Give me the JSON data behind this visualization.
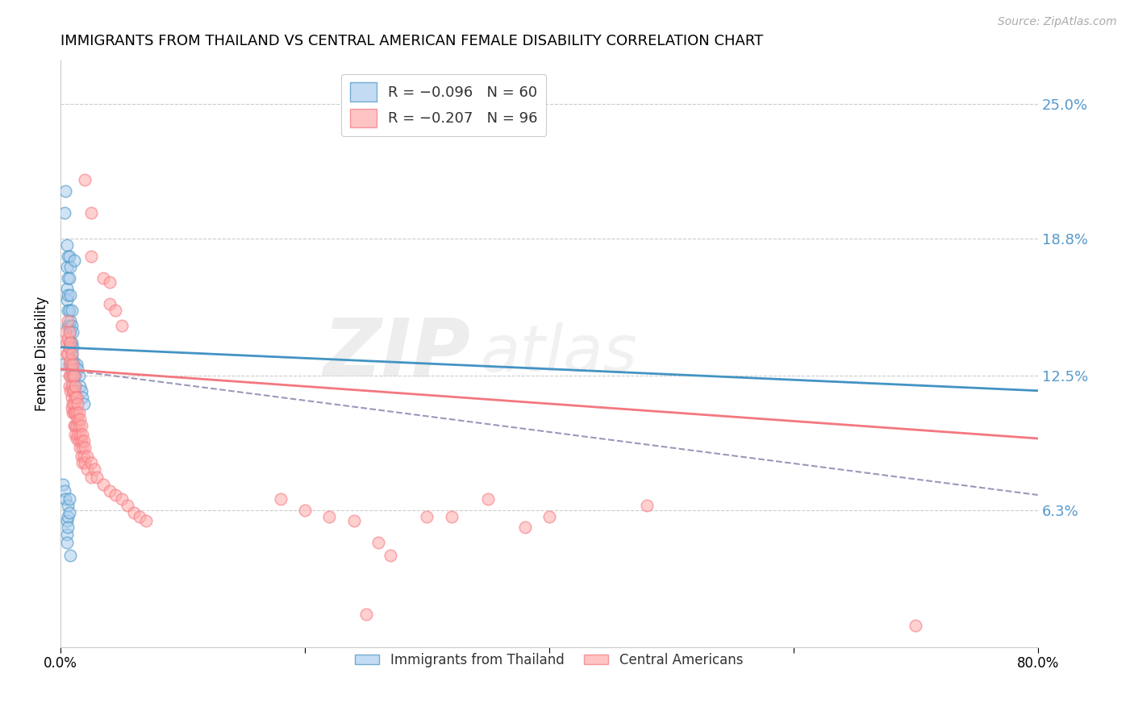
{
  "title": "IMMIGRANTS FROM THAILAND VS CENTRAL AMERICAN FEMALE DISABILITY CORRELATION CHART",
  "source": "Source: ZipAtlas.com",
  "ylabel": "Female Disability",
  "right_yticks": [
    "25.0%",
    "18.8%",
    "12.5%",
    "6.3%"
  ],
  "right_ytick_vals": [
    0.25,
    0.188,
    0.125,
    0.063
  ],
  "watermark": "ZIPatlas",
  "xlim": [
    0.0,
    0.8
  ],
  "ylim": [
    0.0,
    0.27
  ],
  "thailand_scatter": [
    [
      0.002,
      0.13
    ],
    [
      0.003,
      0.2
    ],
    [
      0.004,
      0.21
    ],
    [
      0.005,
      0.185
    ],
    [
      0.005,
      0.175
    ],
    [
      0.005,
      0.165
    ],
    [
      0.005,
      0.16
    ],
    [
      0.006,
      0.18
    ],
    [
      0.006,
      0.17
    ],
    [
      0.006,
      0.162
    ],
    [
      0.006,
      0.155
    ],
    [
      0.006,
      0.148
    ],
    [
      0.007,
      0.18
    ],
    [
      0.007,
      0.17
    ],
    [
      0.007,
      0.155
    ],
    [
      0.007,
      0.148
    ],
    [
      0.007,
      0.14
    ],
    [
      0.007,
      0.138
    ],
    [
      0.008,
      0.175
    ],
    [
      0.008,
      0.162
    ],
    [
      0.008,
      0.15
    ],
    [
      0.008,
      0.145
    ],
    [
      0.008,
      0.14
    ],
    [
      0.008,
      0.13
    ],
    [
      0.009,
      0.155
    ],
    [
      0.009,
      0.148
    ],
    [
      0.009,
      0.14
    ],
    [
      0.009,
      0.135
    ],
    [
      0.009,
      0.13
    ],
    [
      0.009,
      0.125
    ],
    [
      0.01,
      0.145
    ],
    [
      0.01,
      0.138
    ],
    [
      0.01,
      0.132
    ],
    [
      0.01,
      0.128
    ],
    [
      0.01,
      0.125
    ],
    [
      0.01,
      0.12
    ],
    [
      0.011,
      0.178
    ],
    [
      0.011,
      0.13
    ],
    [
      0.011,
      0.125
    ],
    [
      0.012,
      0.125
    ],
    [
      0.012,
      0.12
    ],
    [
      0.013,
      0.13
    ],
    [
      0.014,
      0.128
    ],
    [
      0.015,
      0.125
    ],
    [
      0.016,
      0.12
    ],
    [
      0.017,
      0.118
    ],
    [
      0.018,
      0.115
    ],
    [
      0.019,
      0.112
    ],
    [
      0.002,
      0.075
    ],
    [
      0.003,
      0.072
    ],
    [
      0.004,
      0.068
    ],
    [
      0.005,
      0.058
    ],
    [
      0.005,
      0.052
    ],
    [
      0.005,
      0.048
    ],
    [
      0.006,
      0.065
    ],
    [
      0.006,
      0.06
    ],
    [
      0.006,
      0.055
    ],
    [
      0.007,
      0.068
    ],
    [
      0.007,
      0.062
    ],
    [
      0.008,
      0.042
    ]
  ],
  "central_scatter": [
    [
      0.004,
      0.145
    ],
    [
      0.005,
      0.14
    ],
    [
      0.005,
      0.135
    ],
    [
      0.006,
      0.15
    ],
    [
      0.006,
      0.142
    ],
    [
      0.006,
      0.135
    ],
    [
      0.007,
      0.145
    ],
    [
      0.007,
      0.138
    ],
    [
      0.007,
      0.13
    ],
    [
      0.007,
      0.125
    ],
    [
      0.007,
      0.12
    ],
    [
      0.008,
      0.14
    ],
    [
      0.008,
      0.132
    ],
    [
      0.008,
      0.125
    ],
    [
      0.008,
      0.118
    ],
    [
      0.009,
      0.135
    ],
    [
      0.009,
      0.128
    ],
    [
      0.009,
      0.12
    ],
    [
      0.009,
      0.115
    ],
    [
      0.009,
      0.11
    ],
    [
      0.01,
      0.13
    ],
    [
      0.01,
      0.125
    ],
    [
      0.01,
      0.118
    ],
    [
      0.01,
      0.112
    ],
    [
      0.01,
      0.108
    ],
    [
      0.011,
      0.125
    ],
    [
      0.011,
      0.118
    ],
    [
      0.011,
      0.112
    ],
    [
      0.011,
      0.108
    ],
    [
      0.011,
      0.102
    ],
    [
      0.012,
      0.12
    ],
    [
      0.012,
      0.115
    ],
    [
      0.012,
      0.108
    ],
    [
      0.012,
      0.102
    ],
    [
      0.012,
      0.098
    ],
    [
      0.013,
      0.115
    ],
    [
      0.013,
      0.108
    ],
    [
      0.013,
      0.102
    ],
    [
      0.013,
      0.096
    ],
    [
      0.014,
      0.112
    ],
    [
      0.014,
      0.105
    ],
    [
      0.014,
      0.098
    ],
    [
      0.015,
      0.108
    ],
    [
      0.015,
      0.102
    ],
    [
      0.015,
      0.095
    ],
    [
      0.016,
      0.105
    ],
    [
      0.016,
      0.098
    ],
    [
      0.016,
      0.092
    ],
    [
      0.017,
      0.102
    ],
    [
      0.017,
      0.095
    ],
    [
      0.017,
      0.088
    ],
    [
      0.018,
      0.098
    ],
    [
      0.018,
      0.092
    ],
    [
      0.018,
      0.085
    ],
    [
      0.019,
      0.095
    ],
    [
      0.019,
      0.088
    ],
    [
      0.02,
      0.092
    ],
    [
      0.02,
      0.085
    ],
    [
      0.022,
      0.088
    ],
    [
      0.022,
      0.082
    ],
    [
      0.025,
      0.085
    ],
    [
      0.025,
      0.078
    ],
    [
      0.028,
      0.082
    ],
    [
      0.03,
      0.078
    ],
    [
      0.035,
      0.075
    ],
    [
      0.04,
      0.072
    ],
    [
      0.045,
      0.07
    ],
    [
      0.05,
      0.068
    ],
    [
      0.055,
      0.065
    ],
    [
      0.06,
      0.062
    ],
    [
      0.065,
      0.06
    ],
    [
      0.07,
      0.058
    ],
    [
      0.02,
      0.215
    ],
    [
      0.025,
      0.2
    ],
    [
      0.025,
      0.18
    ],
    [
      0.035,
      0.17
    ],
    [
      0.04,
      0.168
    ],
    [
      0.04,
      0.158
    ],
    [
      0.045,
      0.155
    ],
    [
      0.05,
      0.148
    ],
    [
      0.18,
      0.068
    ],
    [
      0.2,
      0.063
    ],
    [
      0.22,
      0.06
    ],
    [
      0.24,
      0.058
    ],
    [
      0.25,
      0.015
    ],
    [
      0.26,
      0.048
    ],
    [
      0.27,
      0.042
    ],
    [
      0.3,
      0.06
    ],
    [
      0.32,
      0.06
    ],
    [
      0.38,
      0.055
    ],
    [
      0.48,
      0.065
    ],
    [
      0.7,
      0.01
    ],
    [
      0.35,
      0.068
    ],
    [
      0.4,
      0.06
    ]
  ],
  "thailand_line_color": "#4393c3",
  "central_line_color": "#f4777f",
  "central_dashed_color": "#9999bb",
  "scatter_blue": "#aaccee",
  "scatter_pink": "#ffaaaa",
  "grid_color": "#cccccc",
  "right_axis_color": "#5599cc",
  "background_color": "#ffffff",
  "thailand_trend": [
    0.0,
    0.8,
    0.138,
    0.118
  ],
  "central_trend_solid": [
    0.0,
    0.8,
    0.128,
    0.096
  ],
  "central_trend_dashed": [
    0.0,
    0.8,
    0.128,
    0.07
  ]
}
